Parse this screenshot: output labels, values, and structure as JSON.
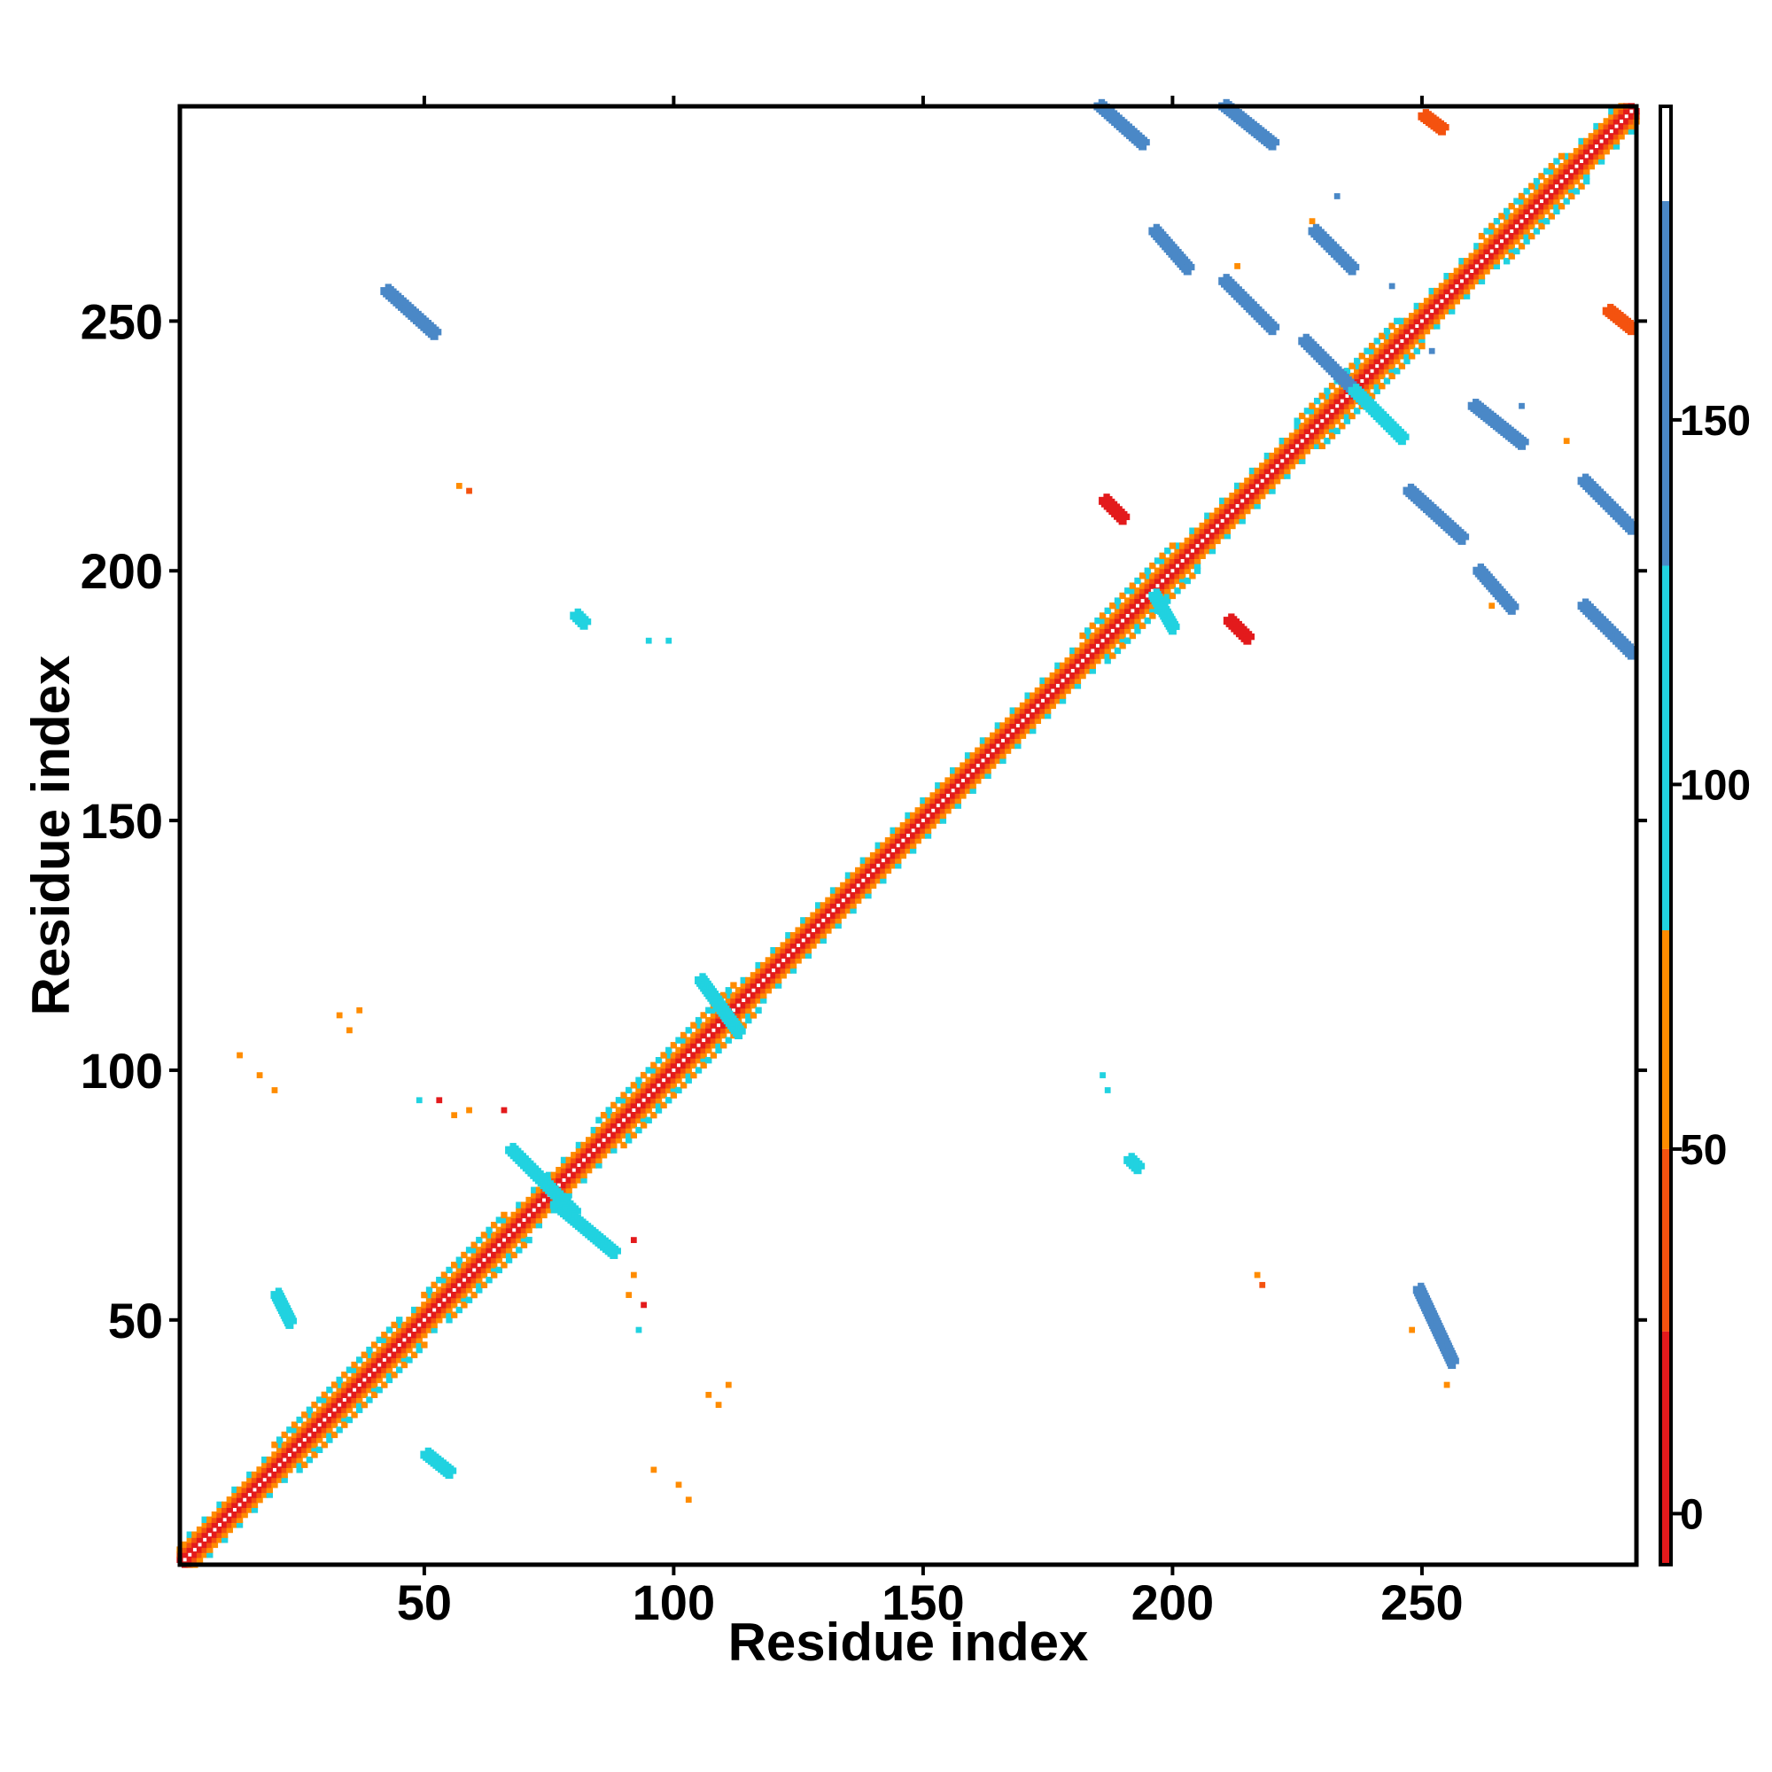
{
  "chart_data": {
    "type": "heatmap",
    "title": "",
    "xlabel": "Residue index",
    "ylabel": "Residue index",
    "xlim": [
      1,
      293
    ],
    "ylim": [
      1,
      293
    ],
    "x_ticks": [
      50,
      100,
      150,
      200,
      250
    ],
    "y_ticks": [
      50,
      100,
      150,
      200,
      250
    ],
    "grid": false,
    "colorbar": {
      "ticks": [
        0,
        50,
        100,
        150
      ],
      "range": [
        -7,
        193
      ],
      "bands": [
        {
          "from": -7,
          "to": 25,
          "color": "#e31a1c"
        },
        {
          "from": 25,
          "to": 50,
          "color": "#f4520f"
        },
        {
          "from": 50,
          "to": 80,
          "color": "#ff8c00"
        },
        {
          "from": 80,
          "to": 130,
          "color": "#21d2e0"
        },
        {
          "from": 130,
          "to": 180,
          "color": "#4a88c7"
        },
        {
          "from": 180,
          "to": 193,
          "color": "#ffffff"
        }
      ]
    },
    "diagonal": {
      "from": 1,
      "to": 293
    },
    "contacts": [
      {
        "x": [
          185,
          194
        ],
        "y": [
          293,
          285
        ],
        "value": 160
      },
      {
        "x": [
          210,
          220
        ],
        "y": [
          293,
          285
        ],
        "value": 160
      },
      {
        "x": [
          196,
          203
        ],
        "y": [
          268,
          260
        ],
        "value": 145
      },
      {
        "x": [
          210,
          220
        ],
        "y": [
          258,
          248
        ],
        "value": 160
      },
      {
        "x": [
          226,
          238
        ],
        "y": [
          246,
          234
        ],
        "value": 160
      },
      {
        "x": [
          236,
          246
        ],
        "y": [
          236,
          226
        ],
        "value": 115
      },
      {
        "x": [
          247,
          258
        ],
        "y": [
          216,
          206
        ],
        "value": 160
      },
      {
        "x": [
          261,
          268
        ],
        "y": [
          200,
          192
        ],
        "value": 155
      },
      {
        "x": [
          282,
          292
        ],
        "y": [
          218,
          208
        ],
        "value": 160
      },
      {
        "x": [
          282,
          292
        ],
        "y": [
          193,
          183
        ],
        "value": 160
      },
      {
        "x": [
          228,
          236
        ],
        "y": [
          268,
          260
        ],
        "value": 160
      },
      {
        "x": [
          260,
          270
        ],
        "y": [
          233,
          225
        ],
        "value": 160
      },
      {
        "x": [
          250,
          254
        ],
        "y": [
          291,
          288
        ],
        "value": 30
      },
      {
        "x": [
          287,
          292
        ],
        "y": [
          252,
          248
        ],
        "value": 30
      },
      {
        "x": [
          186,
          190
        ],
        "y": [
          214,
          210
        ],
        "value": 10
      },
      {
        "x": [
          211,
          215
        ],
        "y": [
          190,
          186
        ],
        "value": 10
      },
      {
        "x": [
          42,
          52
        ],
        "y": [
          256,
          247
        ],
        "value": 160
      },
      {
        "x": [
          67,
          80
        ],
        "y": [
          84,
          71
        ],
        "value": 115
      },
      {
        "x": [
          76,
          88
        ],
        "y": [
          73,
          63
        ],
        "value": 115
      },
      {
        "x": [
          80,
          82
        ],
        "y": [
          191,
          189
        ],
        "value": 115
      },
      {
        "x": [
          191,
          193
        ],
        "y": [
          82,
          80
        ],
        "value": 115
      },
      {
        "x": [
          20,
          23
        ],
        "y": [
          55,
          49
        ],
        "value": 115
      },
      {
        "x": [
          50,
          55
        ],
        "y": [
          23,
          19
        ],
        "value": 115
      },
      {
        "x": [
          249,
          256
        ],
        "y": [
          56,
          41
        ],
        "value": 160
      },
      {
        "x": [
          105,
          113
        ],
        "y": [
          118,
          107
        ],
        "value": 115
      },
      {
        "x": [
          196,
          200
        ],
        "y": [
          195,
          188
        ],
        "value": 115
      }
    ],
    "spots": [
      {
        "x": 57,
        "y": 217,
        "value": 60
      },
      {
        "x": 59,
        "y": 216,
        "value": 30
      },
      {
        "x": 217,
        "y": 59,
        "value": 60
      },
      {
        "x": 218,
        "y": 57,
        "value": 30
      },
      {
        "x": 33,
        "y": 111,
        "value": 60
      },
      {
        "x": 37,
        "y": 112,
        "value": 60
      },
      {
        "x": 35,
        "y": 108,
        "value": 60
      },
      {
        "x": 13,
        "y": 103,
        "value": 60
      },
      {
        "x": 17,
        "y": 99,
        "value": 60
      },
      {
        "x": 20,
        "y": 96,
        "value": 60
      },
      {
        "x": 111,
        "y": 37,
        "value": 60
      },
      {
        "x": 109,
        "y": 33,
        "value": 60
      },
      {
        "x": 107,
        "y": 35,
        "value": 60
      },
      {
        "x": 96,
        "y": 20,
        "value": 60
      },
      {
        "x": 101,
        "y": 17,
        "value": 60
      },
      {
        "x": 103,
        "y": 14,
        "value": 60
      },
      {
        "x": 56,
        "y": 91,
        "value": 60
      },
      {
        "x": 59,
        "y": 92,
        "value": 60
      },
      {
        "x": 53,
        "y": 94,
        "value": 10
      },
      {
        "x": 66,
        "y": 92,
        "value": 10
      },
      {
        "x": 92,
        "y": 59,
        "value": 60
      },
      {
        "x": 91,
        "y": 55,
        "value": 60
      },
      {
        "x": 94,
        "y": 53,
        "value": 10
      },
      {
        "x": 92,
        "y": 66,
        "value": 10
      },
      {
        "x": 93,
        "y": 48,
        "value": 115
      },
      {
        "x": 49,
        "y": 94,
        "value": 115
      },
      {
        "x": 95,
        "y": 186,
        "value": 115
      },
      {
        "x": 99,
        "y": 186,
        "value": 115
      },
      {
        "x": 186,
        "y": 99,
        "value": 115
      },
      {
        "x": 187,
        "y": 96,
        "value": 115
      },
      {
        "x": 248,
        "y": 48,
        "value": 60
      },
      {
        "x": 255,
        "y": 37,
        "value": 60
      },
      {
        "x": 228,
        "y": 270,
        "value": 60
      },
      {
        "x": 279,
        "y": 226,
        "value": 60
      },
      {
        "x": 213,
        "y": 261,
        "value": 60
      },
      {
        "x": 264,
        "y": 193,
        "value": 60
      },
      {
        "x": 233,
        "y": 275,
        "value": 160
      },
      {
        "x": 270,
        "y": 233,
        "value": 160
      },
      {
        "x": 244,
        "y": 257,
        "value": 160
      },
      {
        "x": 252,
        "y": 244,
        "value": 160
      }
    ]
  }
}
